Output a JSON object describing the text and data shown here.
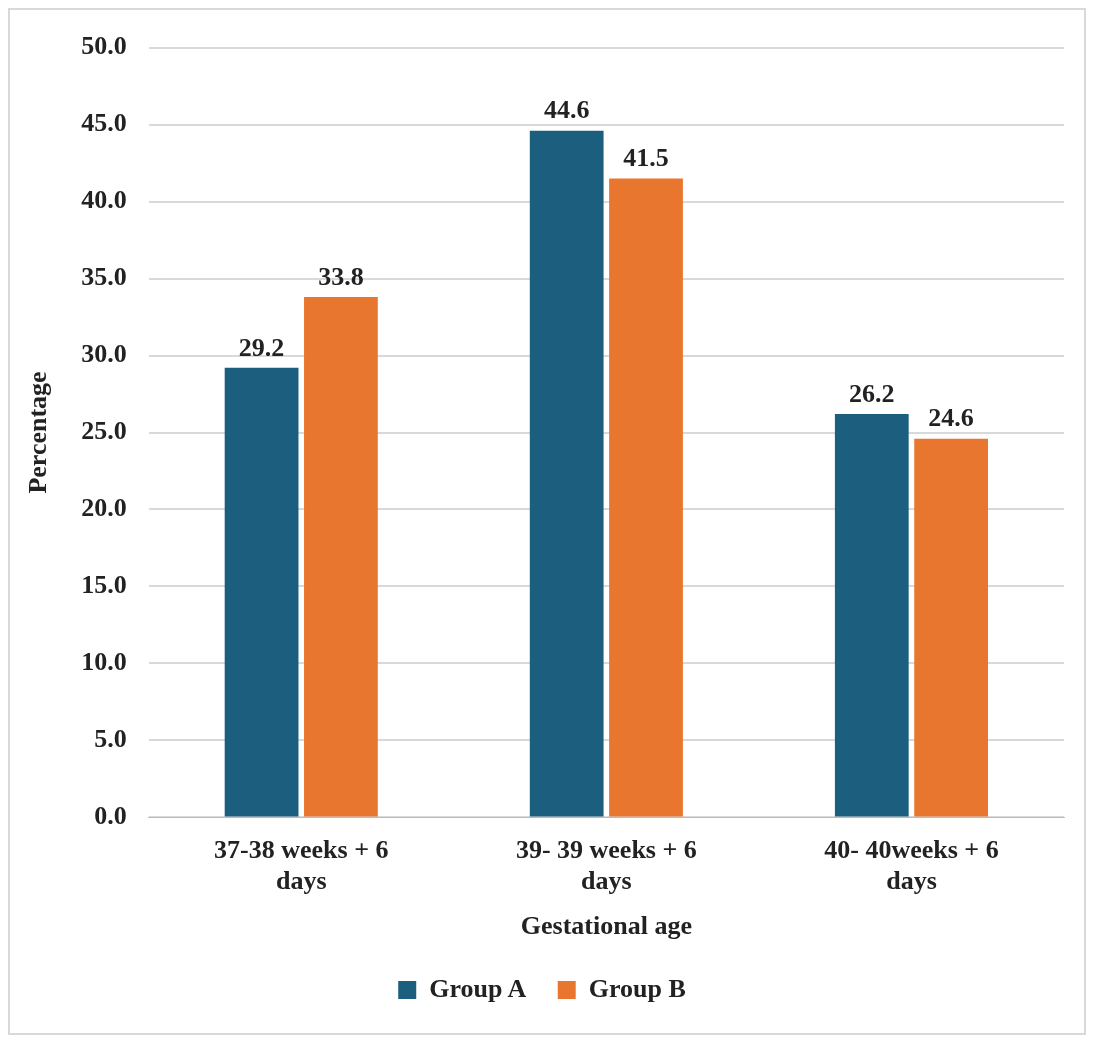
{
  "chart_data": {
    "type": "bar",
    "xlabel": "Gestational age",
    "ylabel": "Percentage",
    "categories": [
      "37-38 weeks + 6 days",
      "39- 39 weeks + 6 days",
      "40- 40weeks + 6 days"
    ],
    "series": [
      {
        "name": "Group A",
        "color": "#1b5e7e",
        "values": [
          29.2,
          44.6,
          26.2
        ]
      },
      {
        "name": "Group B",
        "color": "#e9762f",
        "values": [
          33.8,
          41.5,
          24.6
        ]
      }
    ],
    "ylim": [
      0,
      50
    ],
    "yticks": [
      {
        "value": 0,
        "label": "0.0"
      },
      {
        "value": 5,
        "label": "5.0"
      },
      {
        "value": 10,
        "label": "10.0"
      },
      {
        "value": 15,
        "label": "15.0"
      },
      {
        "value": 20,
        "label": "20.0"
      },
      {
        "value": 25,
        "label": "25.0"
      },
      {
        "value": 30,
        "label": "30.0"
      },
      {
        "value": 35,
        "label": "35.0"
      },
      {
        "value": 40,
        "label": "40.0"
      },
      {
        "value": 45,
        "label": "45.0"
      },
      {
        "value": 50,
        "label": "50.0"
      }
    ],
    "grid": "y",
    "legend": "bottom",
    "data_labels": true
  }
}
